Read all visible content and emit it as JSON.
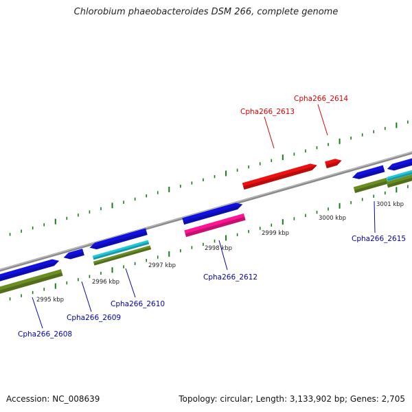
{
  "title": "Chlorobium phaeobacteroides DSM 266, complete genome",
  "footer": {
    "accession": "Accession: NC_008639",
    "summary": "Topology: circular; Length: 3,133,902 bp; Genes: 2,705"
  },
  "colors": {
    "backbone": "#8a8a8a",
    "tick": "#1a7a1a",
    "gene_blue": "#1010e0",
    "gene_red": "#ee1010",
    "gene_pink": "#ff1493",
    "gene_cyan": "#20c8d8",
    "gene_olive": "#6b8e23",
    "label_blue": "#0000aa",
    "label_red": "#dd0000"
  },
  "position_labels": [
    {
      "text": "2995 kbp",
      "kbp": 2995
    },
    {
      "text": "2996 kbp",
      "kbp": 2996
    },
    {
      "text": "2997 kbp",
      "kbp": 2997
    },
    {
      "text": "2998 kbp",
      "kbp": 2998
    },
    {
      "text": "2999 kbp",
      "kbp": 2999
    },
    {
      "text": "3000 kbp",
      "kbp": 3000
    },
    {
      "text": "3001 kbp",
      "kbp": 3001
    }
  ],
  "gene_labels": [
    {
      "text": "Cpha266_2608",
      "color": "blue"
    },
    {
      "text": "Cpha266_2609",
      "color": "blue"
    },
    {
      "text": "Cpha266_2610",
      "color": "blue"
    },
    {
      "text": "Cpha266_2612",
      "color": "blue"
    },
    {
      "text": "Cpha266_2613",
      "color": "red"
    },
    {
      "text": "Cpha266_2614",
      "color": "red"
    },
    {
      "text": "Cpha266_2615",
      "color": "blue"
    }
  ]
}
